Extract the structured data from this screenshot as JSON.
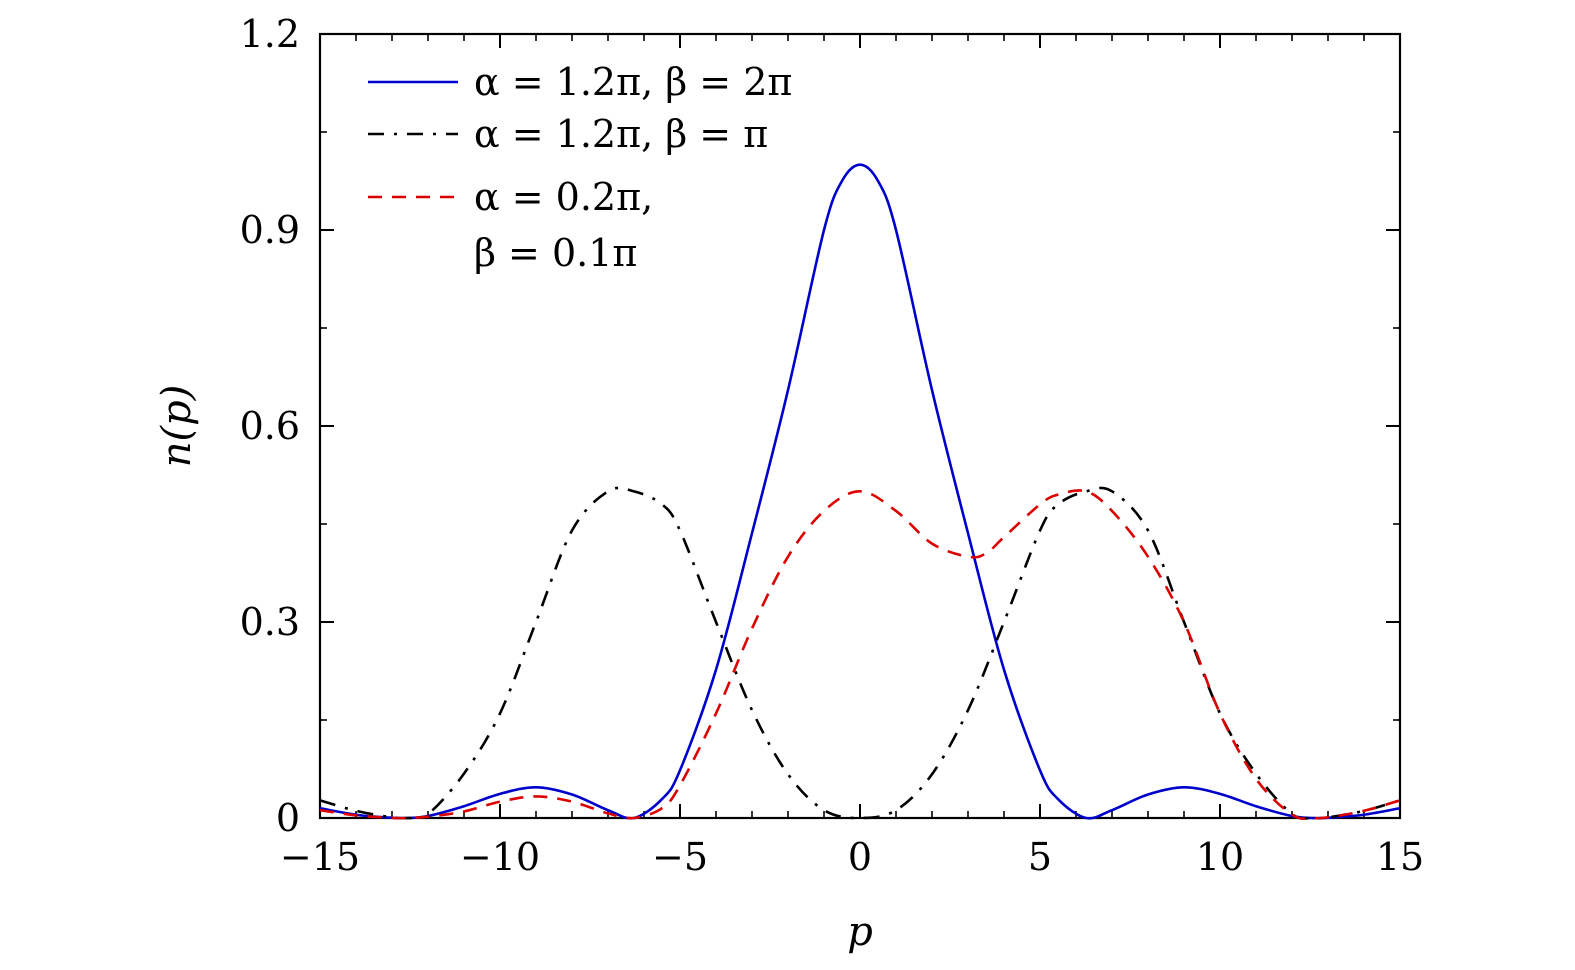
{
  "chart_data": {
    "type": "line",
    "title": "",
    "xlabel": "p",
    "ylabel": "n(p)",
    "xlim": [
      -15,
      15
    ],
    "ylim": [
      0,
      1.2
    ],
    "grid": false,
    "legend_position": "top-left",
    "x_ticks": [
      {
        "value": -15,
        "label": "−15"
      },
      {
        "value": -10,
        "label": "−10"
      },
      {
        "value": -5,
        "label": "−5"
      },
      {
        "value": 0,
        "label": "0"
      },
      {
        "value": 5,
        "label": "5"
      },
      {
        "value": 10,
        "label": "10"
      },
      {
        "value": 15,
        "label": "15"
      }
    ],
    "y_ticks": [
      {
        "value": 0,
        "label": "0"
      },
      {
        "value": 0.3,
        "label": "0.3"
      },
      {
        "value": 0.6,
        "label": "0.6"
      },
      {
        "value": 0.9,
        "label": "0.9"
      },
      {
        "value": 1.2,
        "label": "1.2"
      }
    ],
    "legend_lines": [
      [
        "α = 1.2π,  β = 2π"
      ],
      [
        "α = 1.2π,  β = π"
      ],
      [
        "α = 0.2π,",
        "β = 0.1π"
      ]
    ],
    "series": [
      {
        "name": "α = 1.2π, β = 2π",
        "color": "#0000cc",
        "dash": "solid",
        "x": [
          -15,
          -14,
          -13,
          -12.57,
          -12,
          -11,
          -10,
          -9,
          -8,
          -7,
          -6.28,
          -5.5,
          -5,
          -4,
          -3,
          -2,
          -1,
          -0.5,
          0,
          0.5,
          1,
          2,
          3,
          4,
          5,
          5.5,
          6.28,
          7,
          8,
          9,
          10,
          11,
          12,
          12.57,
          13,
          14,
          15
        ],
        "y": [
          0.015,
          0.005,
          0.0003,
          0.0,
          0.003,
          0.018,
          0.037,
          0.047,
          0.036,
          0.012,
          0.0,
          0.029,
          0.073,
          0.227,
          0.436,
          0.655,
          0.9,
          0.975,
          1.0,
          0.975,
          0.9,
          0.655,
          0.436,
          0.227,
          0.073,
          0.029,
          0.0,
          0.012,
          0.036,
          0.047,
          0.037,
          0.018,
          0.003,
          0.0,
          0.0003,
          0.005,
          0.015
        ]
      },
      {
        "name": "α = 1.2π, β = π",
        "color": "#000000",
        "dash": "dashdot",
        "x": [
          -15,
          -14,
          -13,
          -12.57,
          -12,
          -11,
          -10,
          -9,
          -8,
          -7,
          -6.28,
          -5.5,
          -5,
          -4,
          -3,
          -2,
          -1,
          0,
          1,
          2,
          3,
          4,
          5,
          5.5,
          6.28,
          7,
          8,
          9,
          10,
          11,
          12,
          12.57,
          13,
          14,
          15
        ],
        "y": [
          0.027,
          0.011,
          0.001,
          0.0,
          0.006,
          0.068,
          0.16,
          0.3,
          0.44,
          0.5,
          0.5,
          0.48,
          0.44,
          0.3,
          0.165,
          0.067,
          0.012,
          0.0,
          0.012,
          0.067,
          0.165,
          0.3,
          0.44,
          0.48,
          0.5,
          0.5,
          0.44,
          0.3,
          0.16,
          0.068,
          0.006,
          0.0,
          0.001,
          0.011,
          0.027
        ]
      },
      {
        "name": "α = 0.2π, β = 0.1π",
        "color": "#dd0000",
        "dash": "dashed",
        "x": [
          -15,
          -14,
          -13,
          -12.57,
          -12,
          -11,
          -10,
          -9,
          -8,
          -7,
          -6.28,
          -5.5,
          -5,
          -4,
          -3,
          -2,
          -1,
          0,
          1,
          2,
          3,
          3.5,
          4,
          5,
          5.5,
          6.28,
          7,
          8,
          9,
          10,
          11,
          12,
          12.57,
          13,
          14,
          15
        ],
        "y": [
          0.012,
          0.004,
          0.0002,
          0.0,
          0.002,
          0.01,
          0.025,
          0.033,
          0.025,
          0.007,
          0.0,
          0.015,
          0.05,
          0.16,
          0.29,
          0.4,
          0.47,
          0.5,
          0.47,
          0.42,
          0.4,
          0.405,
          0.43,
          0.48,
          0.495,
          0.5,
          0.47,
          0.4,
          0.3,
          0.16,
          0.06,
          0.005,
          0.0,
          0.001,
          0.011,
          0.027
        ]
      }
    ]
  }
}
